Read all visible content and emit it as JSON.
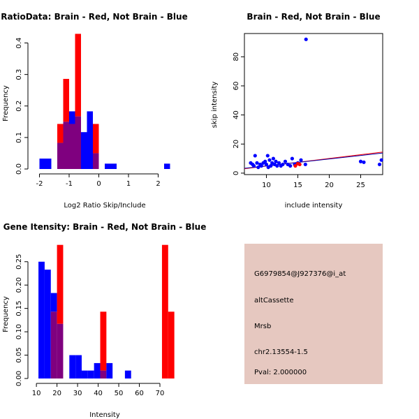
{
  "colors": {
    "red": "#ff0000",
    "blue": "#0000ff",
    "overlap": "#7f007f",
    "panel": "#e6c8c0",
    "pval": "#aa0000",
    "red_line": "#ff0000",
    "blue_line": "#0000aa"
  },
  "chart_data": [
    {
      "type": "histogram",
      "title": "RatioData: Brain - Red, Not Brain - Blue",
      "xlabel": "Log2 Ratio Skip/Include",
      "ylabel": "Frequency",
      "xlim": [
        -2.2,
        2.6
      ],
      "ylim": [
        0,
        0.43
      ],
      "xticks": [
        -2,
        -1,
        0,
        1,
        2
      ],
      "yticks": [
        0.0,
        0.1,
        0.2,
        0.3,
        0.4
      ],
      "ytick_labels": [
        "0.0",
        "0.1",
        "0.2",
        "0.3",
        "0.4"
      ],
      "bin_width": 0.2,
      "series": [
        {
          "name": "Not Brain",
          "color": "blue",
          "bins": [
            {
              "x0": -2.0,
              "freq": 0.033
            },
            {
              "x0": -1.8,
              "freq": 0.033
            },
            {
              "x0": -1.4,
              "freq": 0.083
            },
            {
              "x0": -1.2,
              "freq": 0.15
            },
            {
              "x0": -1.0,
              "freq": 0.183
            },
            {
              "x0": -0.8,
              "freq": 0.167
            },
            {
              "x0": -0.6,
              "freq": 0.117
            },
            {
              "x0": -0.4,
              "freq": 0.183
            },
            {
              "x0": -0.2,
              "freq": 0.05
            },
            {
              "x0": 0.2,
              "freq": 0.017
            },
            {
              "x0": 0.4,
              "freq": 0.017
            },
            {
              "x0": 2.2,
              "freq": 0.017
            }
          ]
        },
        {
          "name": "Brain",
          "color": "red",
          "bins": [
            {
              "x0": -1.4,
              "freq": 0.143
            },
            {
              "x0": -1.2,
              "freq": 0.286
            },
            {
              "x0": -1.0,
              "freq": 0.143
            },
            {
              "x0": -0.8,
              "freq": 0.429
            },
            {
              "x0": -0.2,
              "freq": 0.143
            }
          ]
        }
      ]
    },
    {
      "type": "scatter",
      "title": "Brain - Red, Not Brain - Blue",
      "xlabel": "include intensity",
      "ylabel": "skip intensity",
      "xlim": [
        6.5,
        28.5
      ],
      "ylim": [
        -1,
        96
      ],
      "xticks": [
        10,
        15,
        20,
        25
      ],
      "yticks": [
        0,
        20,
        40,
        60,
        80
      ],
      "series": [
        {
          "name": "Not Brain",
          "color": "blue",
          "points": [
            [
              7.5,
              7
            ],
            [
              7.8,
              6
            ],
            [
              8.0,
              5
            ],
            [
              8.2,
              12
            ],
            [
              8.5,
              7
            ],
            [
              8.7,
              4
            ],
            [
              9.0,
              6
            ],
            [
              9.2,
              5
            ],
            [
              9.5,
              7
            ],
            [
              9.8,
              8
            ],
            [
              10.0,
              6
            ],
            [
              10.2,
              12
            ],
            [
              10.3,
              4
            ],
            [
              10.5,
              9
            ],
            [
              10.7,
              5
            ],
            [
              10.9,
              7
            ],
            [
              11.1,
              10
            ],
            [
              11.3,
              6
            ],
            [
              11.5,
              8
            ],
            [
              11.7,
              5
            ],
            [
              12.0,
              7
            ],
            [
              12.3,
              5
            ],
            [
              12.6,
              6
            ],
            [
              13.0,
              8
            ],
            [
              13.4,
              6
            ],
            [
              13.8,
              5
            ],
            [
              14.1,
              10
            ],
            [
              14.5,
              6
            ],
            [
              15.0,
              7
            ],
            [
              15.5,
              9
            ],
            [
              16.2,
              6
            ],
            [
              16.3,
              92
            ],
            [
              25.0,
              8
            ],
            [
              25.5,
              7.5
            ],
            [
              28.0,
              6
            ],
            [
              28.3,
              9
            ]
          ]
        },
        {
          "name": "Brain",
          "color": "red",
          "points": [
            [
              14.6,
              5
            ],
            [
              15.0,
              6.5
            ],
            [
              15.3,
              6
            ]
          ]
        }
      ],
      "fit_lines": [
        {
          "name": "Brain fit",
          "color": "red_line",
          "x": [
            6.5,
            28.5
          ],
          "y": [
            3.0,
            14.5
          ]
        },
        {
          "name": "Not Brain fit",
          "color": "blue_line",
          "x": [
            6.5,
            28.5
          ],
          "y": [
            3.3,
            13.8
          ]
        }
      ]
    },
    {
      "type": "histogram",
      "title": "Gene Itensity: Brain - Red, Not Brain - Blue",
      "xlabel": "Intensity",
      "ylabel": "Frequency",
      "xlim": [
        8.6,
        77.8
      ],
      "ylim": [
        0,
        0.29
      ],
      "xticks": [
        10,
        20,
        30,
        40,
        50,
        60,
        70
      ],
      "yticks": [
        0.0,
        0.05,
        0.1,
        0.15,
        0.2,
        0.25
      ],
      "ytick_labels": [
        "0.00",
        "0.05",
        "0.10",
        "0.15",
        "0.20",
        "0.25"
      ],
      "bin_width": 3,
      "series": [
        {
          "name": "Not Brain",
          "color": "blue",
          "bins": [
            {
              "x0": 11,
              "freq": 0.25
            },
            {
              "x0": 14,
              "freq": 0.233
            },
            {
              "x0": 17,
              "freq": 0.183
            },
            {
              "x0": 20,
              "freq": 0.117
            },
            {
              "x0": 26,
              "freq": 0.05
            },
            {
              "x0": 29,
              "freq": 0.05
            },
            {
              "x0": 32,
              "freq": 0.017
            },
            {
              "x0": 35,
              "freq": 0.017
            },
            {
              "x0": 38,
              "freq": 0.033
            },
            {
              "x0": 41,
              "freq": 0.017
            },
            {
              "x0": 44,
              "freq": 0.033
            },
            {
              "x0": 53,
              "freq": 0.017
            }
          ]
        },
        {
          "name": "Brain",
          "color": "red",
          "bins": [
            {
              "x0": 17,
              "freq": 0.143
            },
            {
              "x0": 20,
              "freq": 0.286
            },
            {
              "x0": 41,
              "freq": 0.143
            },
            {
              "x0": 71,
              "freq": 0.286
            },
            {
              "x0": 74,
              "freq": 0.143
            }
          ]
        }
      ]
    }
  ],
  "info": {
    "probe": "G6979854@J927376@i_at",
    "event_type": "altCassette",
    "gene": "Mrsb",
    "location": "chr2.13554-1.5",
    "pval": "Pval: 2.000000"
  }
}
